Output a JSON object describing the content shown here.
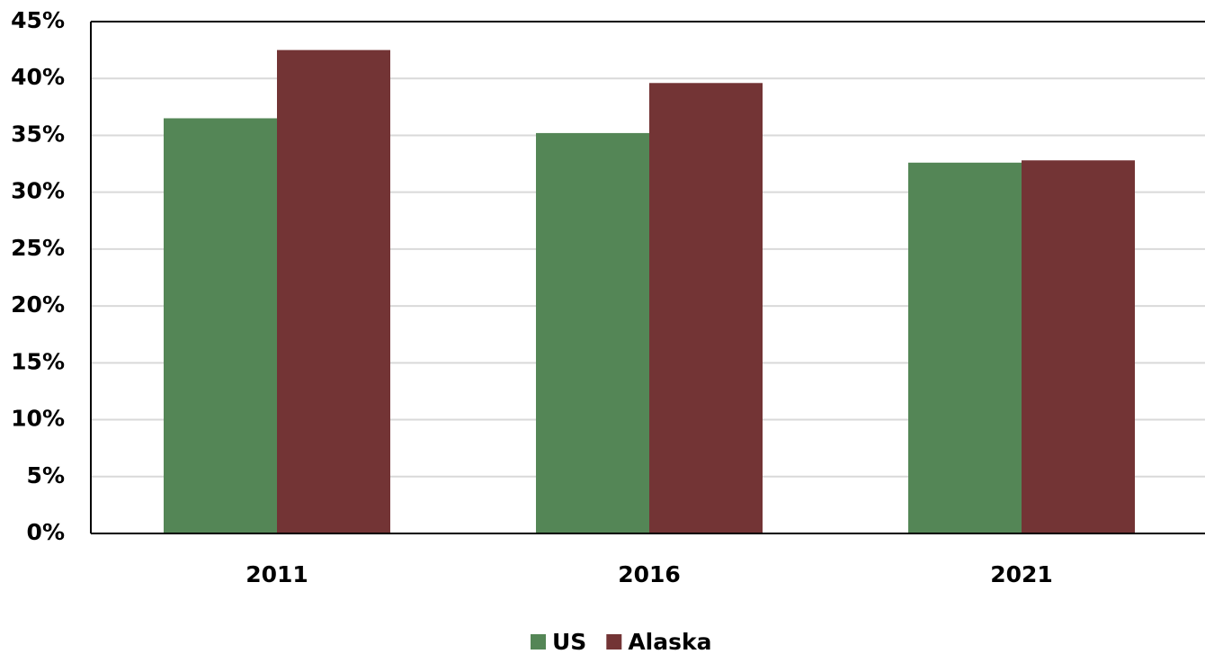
{
  "chart_data": {
    "type": "bar",
    "categories": [
      "2011",
      "2016",
      "2021"
    ],
    "series": [
      {
        "name": "US",
        "color": "#548656",
        "values": [
          36.5,
          35.2,
          32.6
        ]
      },
      {
        "name": "Alaska",
        "color": "#733435",
        "values": [
          42.5,
          39.6,
          32.8
        ]
      }
    ],
    "ylim": [
      0,
      45
    ],
    "yticks": [
      {
        "value": 0,
        "label": "0%"
      },
      {
        "value": 5,
        "label": "5%"
      },
      {
        "value": 10,
        "label": "10%"
      },
      {
        "value": 15,
        "label": "15%"
      },
      {
        "value": 20,
        "label": "20%"
      },
      {
        "value": 25,
        "label": "25%"
      },
      {
        "value": 30,
        "label": "30%"
      },
      {
        "value": 35,
        "label": "35%"
      },
      {
        "value": 40,
        "label": "40%"
      },
      {
        "value": 45,
        "label": "45%"
      }
    ],
    "grid": true,
    "legend": "bottom"
  }
}
